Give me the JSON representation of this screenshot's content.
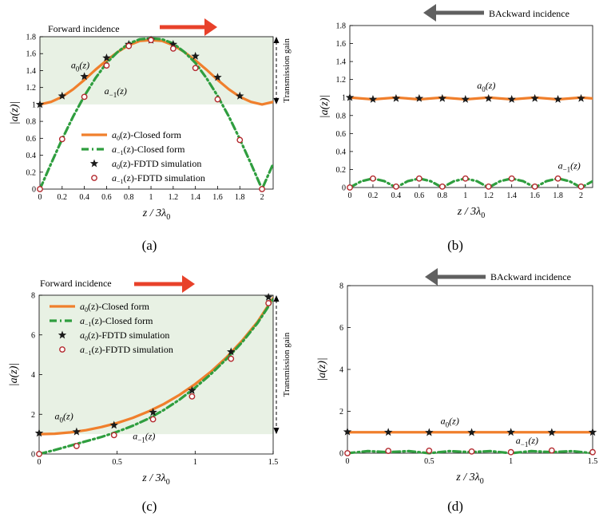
{
  "colors": {
    "a0": "#f07f2c",
    "am1": "#2f9e3f",
    "star": "#1a1a1a",
    "circle": "#b3282d",
    "forward_arrow": "#e8412a",
    "backward_arrow": "#606060",
    "gain_region": "#e8f1e4"
  },
  "chart_data": [
    {
      "id": "a",
      "type": "line",
      "panel_label": "(a)",
      "xlabel": "z / 3λ0",
      "ylabel": "|a(z)|",
      "xlim": [
        0,
        2.1
      ],
      "ylim": [
        0,
        1.8
      ],
      "xticks": [
        "0",
        "0.2",
        "0.4",
        "0.6",
        "0.8",
        "1",
        "1.2",
        "1.4",
        "1.6",
        "1.8",
        "2"
      ],
      "yticks": [
        "0",
        "0.2",
        "0.4",
        "0.6",
        "0.8",
        "1",
        "1.2",
        "1.4",
        "1.6",
        "1.8"
      ],
      "grid": false,
      "incidence": "Forward incidence",
      "gain_label": "Transmission gain",
      "gain_band": [
        1,
        1.8
      ],
      "legend_position": "bottom-center",
      "legend": [
        {
          "key": "a0",
          "style": "solid",
          "text": "a0(z)-Closed form"
        },
        {
          "key": "am1",
          "style": "dashdot",
          "text": "a−1(z)-Closed form"
        },
        {
          "key": "a0",
          "style": "star",
          "text": "a0(z)-FDTD simulation"
        },
        {
          "key": "am1",
          "style": "circle",
          "text": "a−1(z)-FDTD simulation"
        }
      ],
      "annotations": [
        {
          "text": "a0(z)",
          "x": 0.28,
          "y": 1.43
        },
        {
          "text": "a−1(z)",
          "x": 0.58,
          "y": 1.12
        }
      ],
      "series": [
        {
          "key": "a0",
          "name": "a0(z)-Closed form",
          "x": [
            0,
            0.1,
            0.2,
            0.3,
            0.4,
            0.5,
            0.6,
            0.7,
            0.8,
            0.9,
            1.0,
            1.1,
            1.2,
            1.3,
            1.4,
            1.5,
            1.6,
            1.7,
            1.8,
            1.9,
            2.0,
            2.1
          ],
          "y": [
            1.0,
            1.03,
            1.09,
            1.18,
            1.29,
            1.41,
            1.52,
            1.62,
            1.7,
            1.75,
            1.76,
            1.75,
            1.7,
            1.62,
            1.52,
            1.41,
            1.29,
            1.18,
            1.09,
            1.03,
            1.0,
            1.03
          ]
        },
        {
          "key": "am1",
          "name": "a−1(z)-Closed form",
          "x": [
            0,
            0.1,
            0.2,
            0.3,
            0.4,
            0.5,
            0.6,
            0.7,
            0.8,
            0.9,
            1.0,
            1.1,
            1.2,
            1.3,
            1.4,
            1.5,
            1.6,
            1.7,
            1.8,
            1.9,
            2.0,
            2.1
          ],
          "y": [
            0.0,
            0.3,
            0.59,
            0.86,
            1.1,
            1.31,
            1.49,
            1.62,
            1.72,
            1.77,
            1.78,
            1.77,
            1.72,
            1.62,
            1.49,
            1.31,
            1.1,
            0.86,
            0.59,
            0.3,
            0.0,
            0.3
          ]
        },
        {
          "key": "a0",
          "name": "a0(z)-FDTD simulation",
          "marker": "star",
          "x": [
            0,
            0.2,
            0.4,
            0.6,
            0.8,
            1.0,
            1.2,
            1.4,
            1.6,
            1.8
          ],
          "y": [
            1.0,
            1.1,
            1.33,
            1.55,
            1.71,
            1.76,
            1.71,
            1.57,
            1.32,
            1.1
          ]
        },
        {
          "key": "am1",
          "name": "a−1(z)-FDTD simulation",
          "marker": "circle",
          "x": [
            0,
            0.2,
            0.4,
            0.6,
            0.8,
            1.0,
            1.2,
            1.4,
            1.6,
            1.8,
            2.0
          ],
          "y": [
            0.0,
            0.59,
            1.09,
            1.46,
            1.69,
            1.76,
            1.66,
            1.43,
            1.06,
            0.58,
            0.0
          ]
        }
      ]
    },
    {
      "id": "b",
      "type": "line",
      "panel_label": "(b)",
      "xlabel": "z / 3λ0",
      "ylabel": "|a(z)|",
      "xlim": [
        0,
        2.1
      ],
      "ylim": [
        0,
        1.8
      ],
      "xticks": [
        "0",
        "0.2",
        "0.4",
        "0.6",
        "0.8",
        "1",
        "1.2",
        "1.4",
        "1.6",
        "1.8",
        "2"
      ],
      "yticks": [
        "0",
        "0.2",
        "0.4",
        "0.6",
        "0.8",
        "1",
        "1.2",
        "1.4",
        "1.6",
        "1.8"
      ],
      "grid": false,
      "incidence": "BAckward incidence",
      "annotations": [
        {
          "text": "a0(z)",
          "x": 1.1,
          "y": 1.1
        },
        {
          "text": "a−1(z)",
          "x": 1.8,
          "y": 0.21
        }
      ],
      "series": [
        {
          "key": "a0",
          "name": "a0(z)-Closed form",
          "x": [
            0,
            0.1,
            0.2,
            0.3,
            0.4,
            0.5,
            0.6,
            0.7,
            0.8,
            0.9,
            1.0,
            1.1,
            1.2,
            1.3,
            1.4,
            1.5,
            1.6,
            1.7,
            1.8,
            1.9,
            2.0,
            2.1
          ],
          "y": [
            1.0,
            0.99,
            0.98,
            0.99,
            1.0,
            0.99,
            0.98,
            0.99,
            1.0,
            0.99,
            0.98,
            0.99,
            1.0,
            0.99,
            0.98,
            0.99,
            1.0,
            0.99,
            0.98,
            0.99,
            1.0,
            0.99
          ]
        },
        {
          "key": "am1",
          "name": "a−1(z)-Closed form",
          "x": [
            0,
            0.1,
            0.2,
            0.3,
            0.4,
            0.5,
            0.6,
            0.7,
            0.8,
            0.9,
            1.0,
            1.1,
            1.2,
            1.3,
            1.4,
            1.5,
            1.6,
            1.7,
            1.8,
            1.9,
            2.0,
            2.1
          ],
          "y": [
            0.0,
            0.07,
            0.1,
            0.07,
            0.0,
            0.07,
            0.1,
            0.07,
            0.0,
            0.07,
            0.1,
            0.07,
            0.0,
            0.07,
            0.1,
            0.07,
            0.0,
            0.07,
            0.1,
            0.07,
            0.0,
            0.07
          ]
        },
        {
          "key": "a0",
          "name": "a0(z)-FDTD simulation",
          "marker": "star",
          "x": [
            0,
            0.2,
            0.4,
            0.6,
            0.8,
            1.0,
            1.2,
            1.4,
            1.6,
            1.8,
            2.0
          ],
          "y": [
            1.0,
            0.98,
            0.99,
            0.99,
            0.99,
            0.98,
            0.99,
            0.98,
            0.99,
            0.98,
            0.99
          ]
        },
        {
          "key": "am1",
          "name": "a−1(z)-FDTD simulation",
          "marker": "circle",
          "x": [
            0,
            0.2,
            0.4,
            0.6,
            0.8,
            1.0,
            1.2,
            1.4,
            1.6,
            1.8,
            2.0
          ],
          "y": [
            0.0,
            0.1,
            0.01,
            0.1,
            0.01,
            0.1,
            0.01,
            0.1,
            0.01,
            0.1,
            0.01
          ]
        }
      ]
    },
    {
      "id": "c",
      "type": "line",
      "panel_label": "(c)",
      "xlabel": "z / 3λ0",
      "ylabel": "|a(z)|",
      "xlim": [
        0,
        1.5
      ],
      "ylim": [
        0,
        8
      ],
      "xticks": [
        "0",
        "0.5",
        "1",
        "1.5"
      ],
      "yticks": [
        "0",
        "2",
        "4",
        "6",
        "8"
      ],
      "grid": false,
      "incidence": "Forward incidence",
      "gain_label": "Transmission gain",
      "gain_band": [
        1,
        8
      ],
      "legend_position": "top-left",
      "legend": [
        {
          "key": "a0",
          "style": "solid",
          "text": "a0(z)-Closed form"
        },
        {
          "key": "am1",
          "style": "dashdot",
          "text": "a−1(z)-Closed form"
        },
        {
          "key": "a0",
          "style": "star",
          "text": "a0(z)-FDTD simulation"
        },
        {
          "key": "am1",
          "style": "circle",
          "text": "a−1(z)-FDTD simulation"
        }
      ],
      "annotations": [
        {
          "text": "a0(z)",
          "x": 0.1,
          "y": 1.75
        },
        {
          "text": "a−1(z)",
          "x": 0.6,
          "y": 0.75
        }
      ],
      "series": [
        {
          "key": "a0",
          "name": "a0(z)-Closed form",
          "x": [
            0,
            0.1,
            0.2,
            0.3,
            0.4,
            0.5,
            0.6,
            0.7,
            0.8,
            0.9,
            1.0,
            1.1,
            1.2,
            1.3,
            1.4,
            1.5
          ],
          "y": [
            1.0,
            1.02,
            1.09,
            1.2,
            1.36,
            1.56,
            1.82,
            2.14,
            2.52,
            2.98,
            3.52,
            4.14,
            4.86,
            5.7,
            6.66,
            7.86
          ]
        },
        {
          "key": "am1",
          "name": "a−1(z)-Closed form",
          "x": [
            0,
            0.1,
            0.2,
            0.3,
            0.4,
            0.5,
            0.6,
            0.7,
            0.8,
            0.9,
            1.0,
            1.1,
            1.2,
            1.3,
            1.4,
            1.5
          ],
          "y": [
            0.0,
            0.2,
            0.42,
            0.64,
            0.86,
            1.12,
            1.42,
            1.78,
            2.22,
            2.74,
            3.34,
            4.02,
            4.78,
            5.62,
            6.6,
            7.8
          ]
        },
        {
          "key": "a0",
          "name": "a0(z)-FDTD simulation",
          "marker": "star",
          "x": [
            0,
            0.24,
            0.48,
            0.73,
            0.98,
            1.23,
            1.47
          ],
          "y": [
            1.05,
            1.12,
            1.45,
            2.1,
            3.2,
            5.15,
            7.9
          ]
        },
        {
          "key": "am1",
          "name": "a−1(z)-FDTD simulation",
          "marker": "circle",
          "x": [
            0,
            0.24,
            0.48,
            0.73,
            0.98,
            1.23,
            1.47
          ],
          "y": [
            0.0,
            0.4,
            0.95,
            1.75,
            2.9,
            4.8,
            7.6
          ]
        }
      ]
    },
    {
      "id": "d",
      "type": "line",
      "panel_label": "(d)",
      "xlabel": "z / 3λ0",
      "ylabel": "|a(z)|",
      "xlim": [
        0,
        1.5
      ],
      "ylim": [
        0,
        8
      ],
      "xticks": [
        "0",
        "0.5",
        "1",
        "1.5"
      ],
      "yticks": [
        "0",
        "2",
        "4",
        "6",
        "8"
      ],
      "grid": false,
      "incidence": "BAckward incidence",
      "annotations": [
        {
          "text": "a0(z)",
          "x": 0.57,
          "y": 1.4
        },
        {
          "text": "a−1(z)",
          "x": 1.03,
          "y": 0.45
        }
      ],
      "series": [
        {
          "key": "a0",
          "name": "a0(z)-Closed form",
          "x": [
            0,
            0.25,
            0.5,
            0.75,
            1.0,
            1.25,
            1.5
          ],
          "y": [
            1.0,
            1.0,
            1.0,
            1.0,
            1.0,
            1.0,
            1.0
          ]
        },
        {
          "key": "am1",
          "name": "a−1(z)-Closed form",
          "x": [
            0,
            0.125,
            0.25,
            0.375,
            0.5,
            0.625,
            0.75,
            0.875,
            1.0,
            1.125,
            1.25,
            1.375,
            1.5
          ],
          "y": [
            0.0,
            0.1,
            0.05,
            0.1,
            0.0,
            0.1,
            0.05,
            0.1,
            0.0,
            0.1,
            0.05,
            0.1,
            0.0
          ]
        },
        {
          "key": "a0",
          "name": "a0(z)-FDTD simulation",
          "marker": "star",
          "x": [
            0,
            0.25,
            0.5,
            0.76,
            1.0,
            1.25,
            1.5
          ],
          "y": [
            1.02,
            1.0,
            0.99,
            0.99,
            1.0,
            0.99,
            1.0
          ]
        },
        {
          "key": "am1",
          "name": "a−1(z)-FDTD simulation",
          "marker": "circle",
          "x": [
            0,
            0.25,
            0.5,
            0.76,
            1.0,
            1.25,
            1.5
          ],
          "y": [
            0.0,
            0.11,
            0.12,
            0.08,
            0.05,
            0.13,
            0.05
          ]
        }
      ]
    }
  ]
}
